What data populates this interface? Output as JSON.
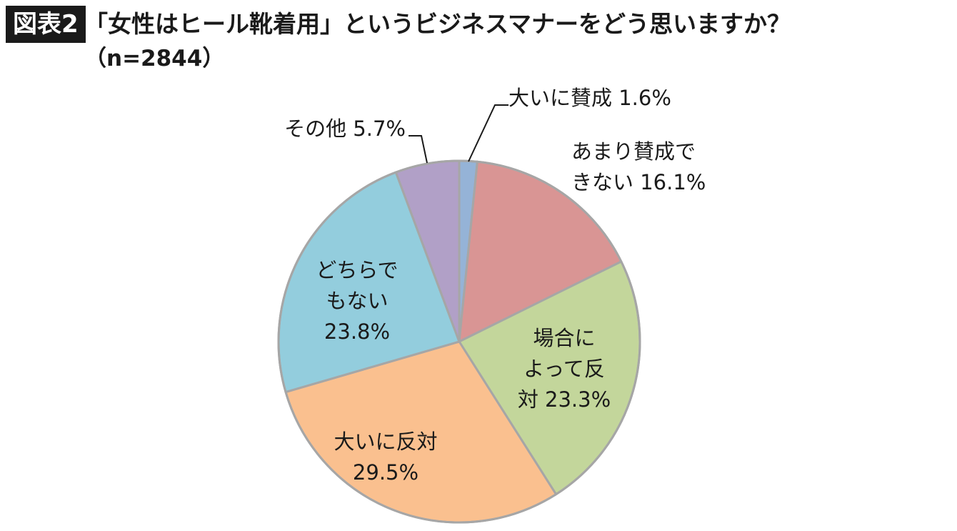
{
  "header": {
    "badge": "図表2",
    "title": "「女性はヒール靴着用」というビジネスマナーをどう思いますか？",
    "subtitle": "（n=2844）"
  },
  "chart_data": {
    "type": "pie",
    "start_angle_deg": 0,
    "direction": "clockwise",
    "slices": [
      {
        "label_lines": [
          "大いに賛成 1.6%"
        ],
        "value": 1.6,
        "color": "#95b3d7"
      },
      {
        "label_lines": [
          "あまり賛成で",
          "きない 16.1%"
        ],
        "value": 16.1,
        "color": "#d99594"
      },
      {
        "label_lines": [
          "場合に",
          "よって反",
          "対 23.3%"
        ],
        "value": 23.3,
        "color": "#c3d69b"
      },
      {
        "label_lines": [
          "大いに反対",
          "29.5%"
        ],
        "value": 29.5,
        "color": "#fac08f"
      },
      {
        "label_lines": [
          "どちらで",
          "もない",
          "23.8%"
        ],
        "value": 23.8,
        "color": "#93cddd"
      },
      {
        "label_lines": [
          "その他 5.7%"
        ],
        "value": 5.7,
        "color": "#b1a0c7"
      }
    ],
    "edge_color": "#a6a6a6"
  }
}
